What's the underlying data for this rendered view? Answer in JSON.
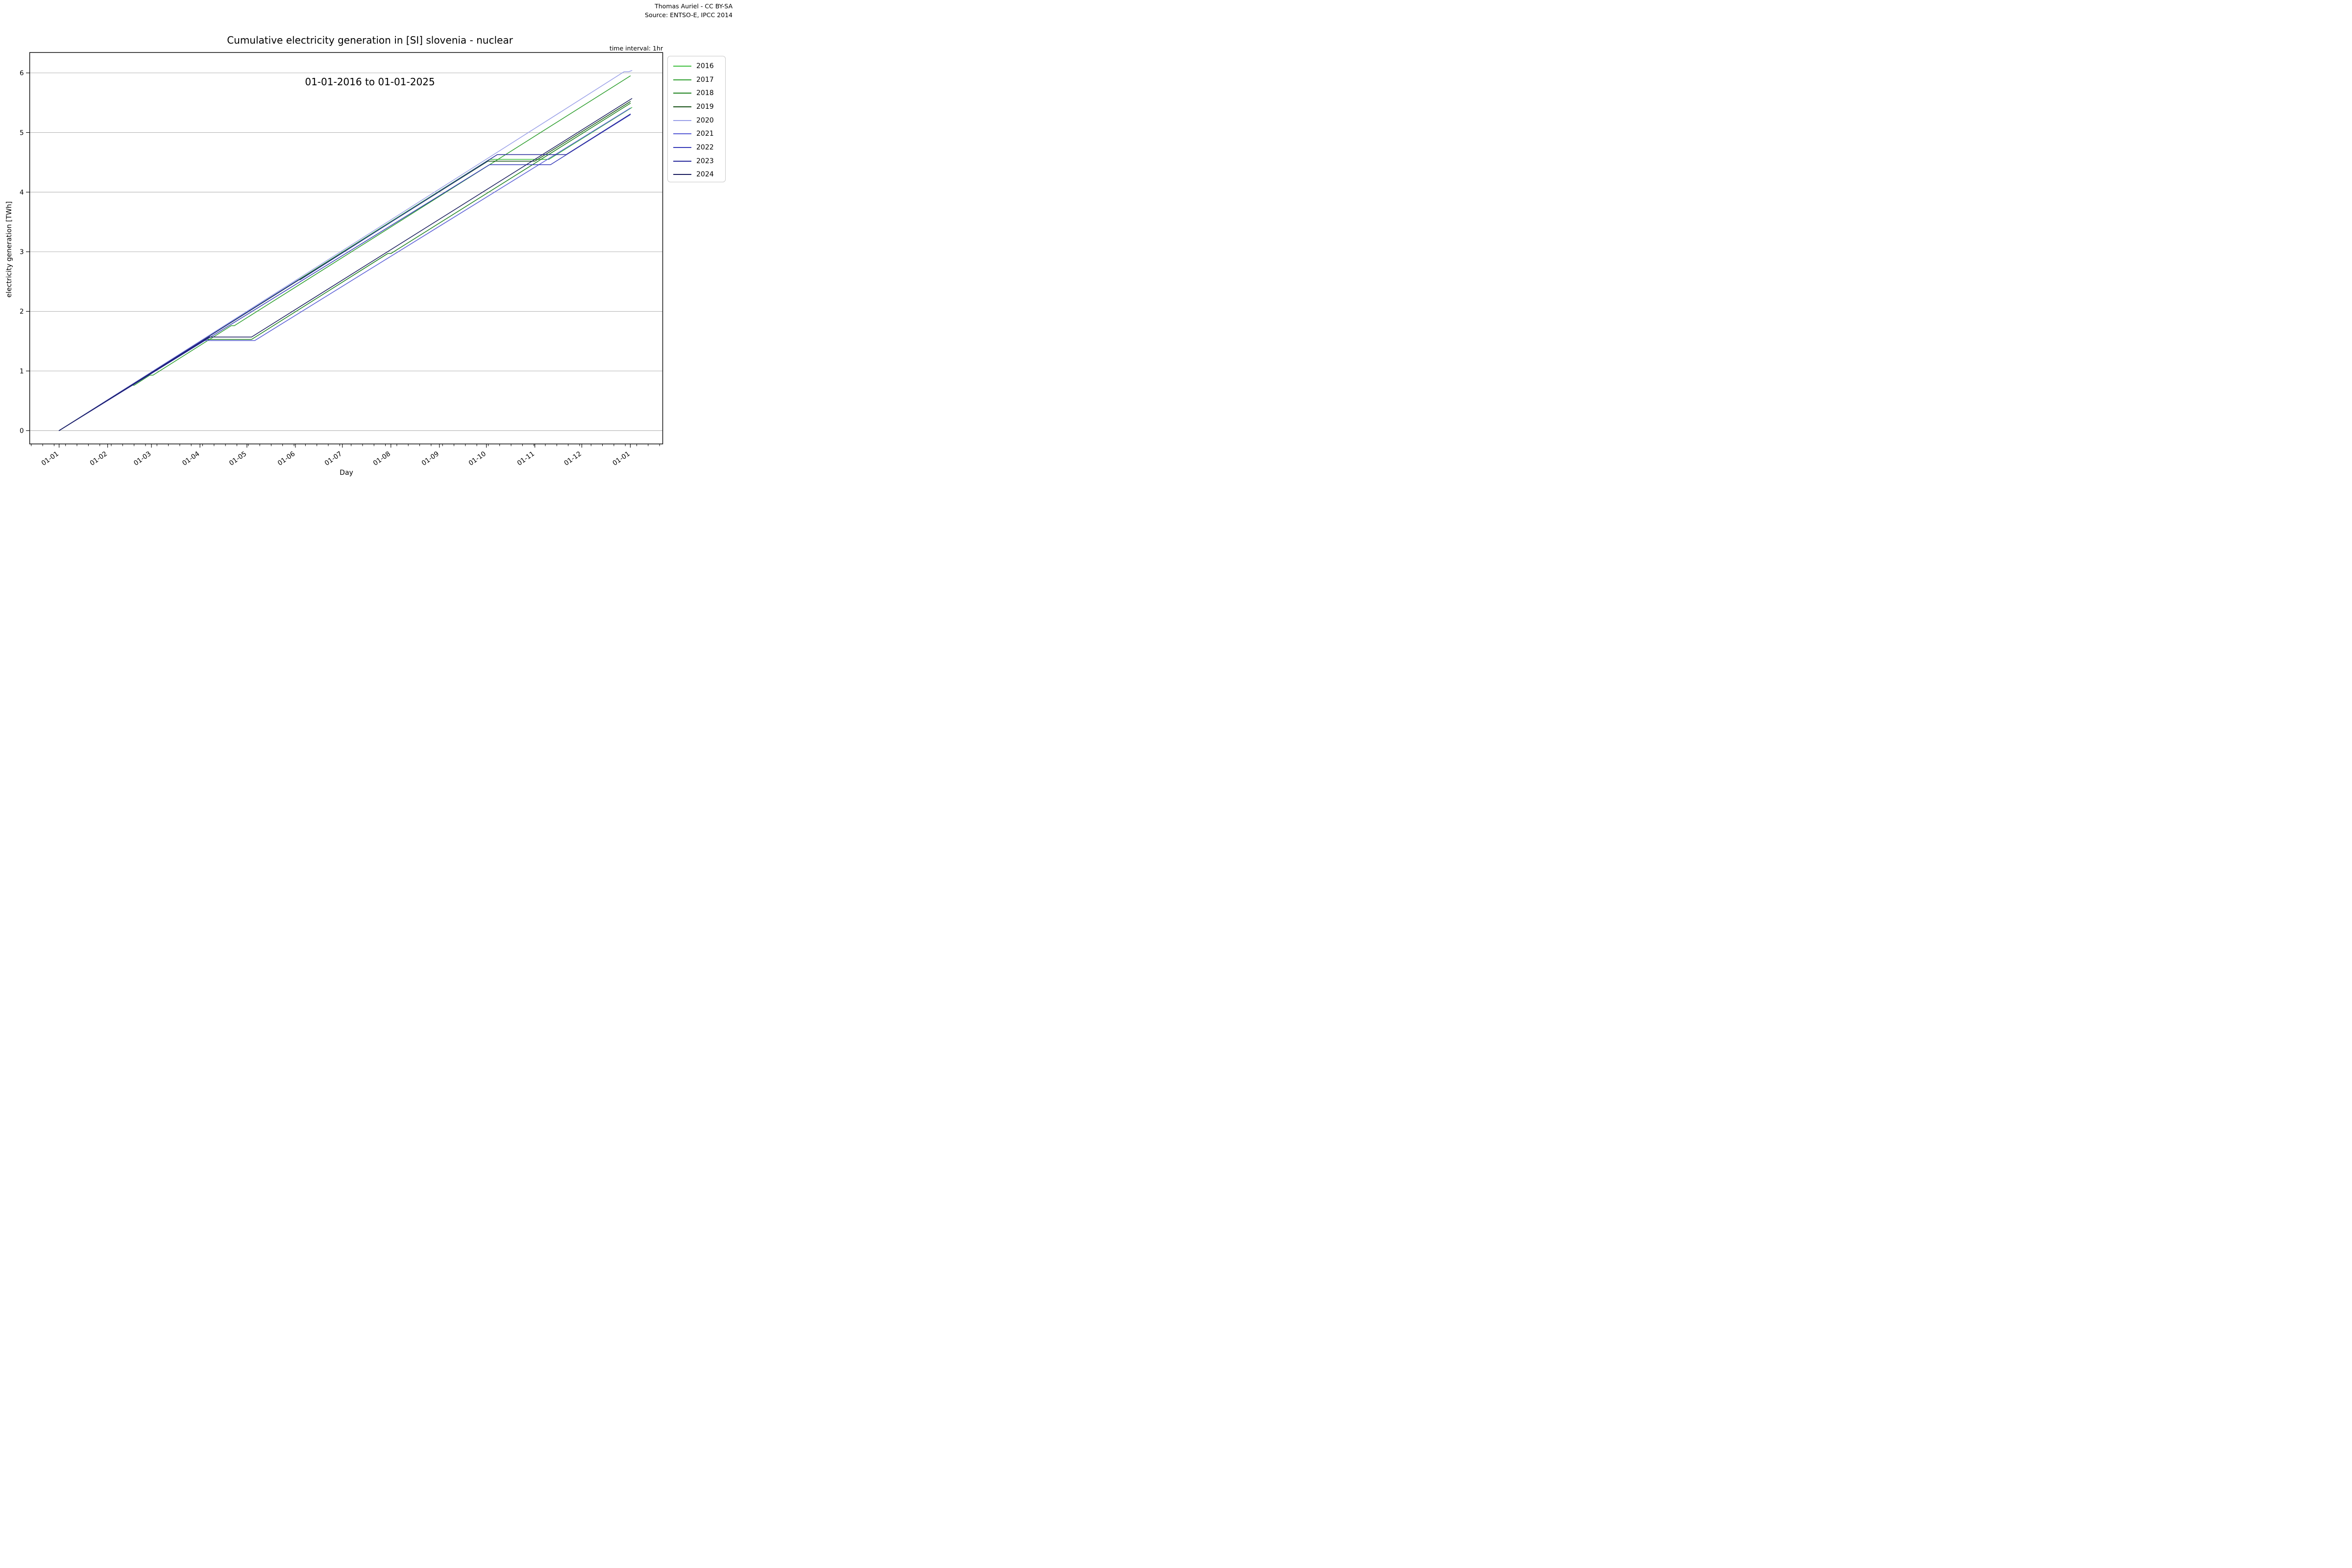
{
  "header": {
    "title_line1": "Cumulative electricity generation in [SI] slovenia - nuclear",
    "title_line2": "01-01-2016 to 01-01-2025",
    "attribution_line1": "Thomas Auriel - CC BY-SA",
    "attribution_line2": "Source: ENTSO-E, IPCC 2014",
    "time_interval_label": "time interval: 1hr"
  },
  "axes": {
    "x_label": "Day",
    "y_label": "electricity generation [TWh]",
    "x_major_ticks": [
      {
        "day": 0,
        "label": "01-01"
      },
      {
        "day": 31,
        "label": "01-02"
      },
      {
        "day": 59,
        "label": "01-03"
      },
      {
        "day": 90,
        "label": "01-04"
      },
      {
        "day": 120,
        "label": "01-05"
      },
      {
        "day": 151,
        "label": "01-06"
      },
      {
        "day": 181,
        "label": "01-07"
      },
      {
        "day": 212,
        "label": "01-08"
      },
      {
        "day": 243,
        "label": "01-09"
      },
      {
        "day": 273,
        "label": "01-10"
      },
      {
        "day": 304,
        "label": "01-11"
      },
      {
        "day": 334,
        "label": "01-12"
      },
      {
        "day": 365,
        "label": "01-01"
      }
    ],
    "x_minor_ticks": {
      "start_day": -17.8,
      "step_days": 7.3
    },
    "y_ticks": [
      0,
      1,
      2,
      3,
      4,
      5,
      6
    ],
    "x_domain_days": [
      -18.8,
      385.7
    ],
    "y_domain": [
      -0.224,
      6.342
    ],
    "grid": "horizontal-only",
    "grid_color": "#aaaaaa",
    "spine_color": "#000000"
  },
  "chart_data": {
    "type": "line",
    "title": "Cumulative electricity generation in [SI] slovenia - nuclear 01-01-2016 to 01-01-2025",
    "xlabel": "Day",
    "ylabel": "electricity generation [TWh]",
    "x_unit": "day of year (01-01 = 0)",
    "y_unit": "TWh",
    "xlim_days": [
      -18.8,
      385.7
    ],
    "ylim": [
      -0.224,
      6.342
    ],
    "legend_position": "outside upper right",
    "series": [
      {
        "name": "2016",
        "color": "#3fbf3f",
        "points": [
          [
            0,
            0
          ],
          [
            275,
            4.55
          ],
          [
            313,
            4.55
          ],
          [
            366,
            5.42
          ]
        ]
      },
      {
        "name": "2017",
        "color": "#2f9f2f",
        "points": [
          [
            0,
            0
          ],
          [
            46,
            0.76
          ],
          [
            48,
            0.76
          ],
          [
            58,
            0.93
          ],
          [
            60,
            0.93
          ],
          [
            110,
            1.76
          ],
          [
            112,
            1.76
          ],
          [
            365,
            5.95
          ]
        ]
      },
      {
        "name": "2018",
        "color": "#1e821e",
        "points": [
          [
            0,
            0
          ],
          [
            92,
            1.53
          ],
          [
            123,
            1.53
          ],
          [
            210,
            2.97
          ],
          [
            212,
            2.97
          ],
          [
            365,
            5.49
          ]
        ]
      },
      {
        "name": "2019",
        "color": "#155015",
        "points": [
          [
            0,
            0
          ],
          [
            274,
            4.52
          ],
          [
            304,
            4.52
          ],
          [
            365,
            5.52
          ]
        ]
      },
      {
        "name": "2020",
        "color": "#9aa0e8",
        "points": [
          [
            0,
            0
          ],
          [
            361,
            6.02
          ],
          [
            364,
            6.02
          ],
          [
            366,
            6.04
          ]
        ]
      },
      {
        "name": "2021",
        "color": "#5a5ed6",
        "points": [
          [
            0,
            0
          ],
          [
            92,
            1.51
          ],
          [
            125,
            1.51
          ],
          [
            365,
            5.41
          ]
        ]
      },
      {
        "name": "2022",
        "color": "#383cb9",
        "points": [
          [
            0,
            0
          ],
          [
            275,
            4.46
          ],
          [
            314,
            4.46
          ],
          [
            365,
            5.3
          ]
        ]
      },
      {
        "name": "2023",
        "color": "#26289b",
        "points": [
          [
            0,
            0
          ],
          [
            153,
            2.53
          ],
          [
            154,
            2.53
          ],
          [
            280,
            4.63
          ],
          [
            324,
            4.63
          ],
          [
            365,
            5.31
          ]
        ]
      },
      {
        "name": "2024",
        "color": "#1a1c5e",
        "points": [
          [
            0,
            0
          ],
          [
            96,
            1.57
          ],
          [
            123,
            1.57
          ],
          [
            366,
            5.57
          ]
        ]
      }
    ]
  }
}
